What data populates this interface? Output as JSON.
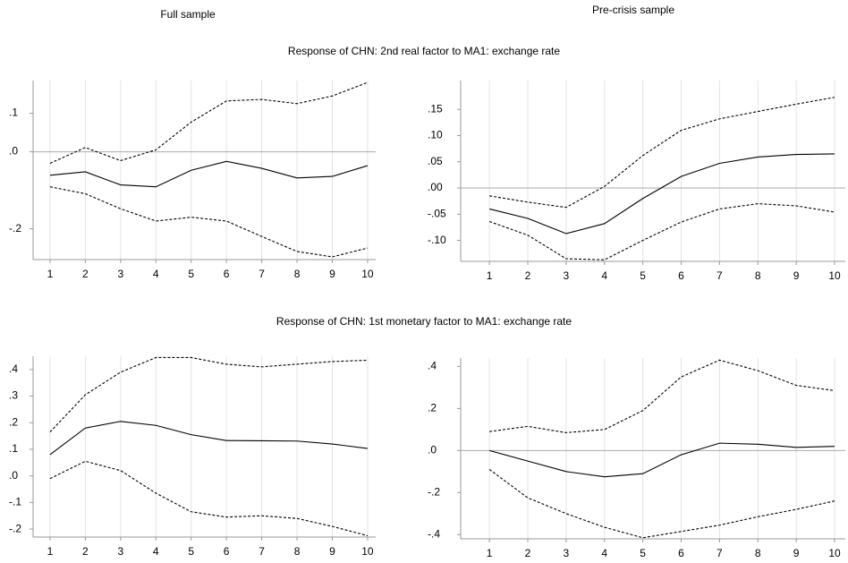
{
  "figure": {
    "columns": [
      "Full sample",
      "Pre-crisis sample"
    ],
    "rows": [
      "Response of CHN: 2nd real factor to MA1: exchange rate",
      "Response of CHN: 1st monetary factor to MA1: exchange rate"
    ]
  },
  "chart_data": [
    {
      "type": "line",
      "x": [
        1,
        2,
        3,
        4,
        5,
        6,
        7,
        8,
        9,
        10
      ],
      "xlim": [
        0.52,
        10.23
      ],
      "xticks": [
        1,
        2,
        3,
        4,
        5,
        6,
        7,
        8,
        9,
        10
      ],
      "ylim": [
        -0.28,
        0.185
      ],
      "yticks": [
        {
          "value": 0.1,
          "label": ".1"
        },
        {
          "value": 0,
          "label": ".0"
        },
        {
          "value": -0.2,
          "label": "-.2"
        }
      ],
      "grid": true,
      "zero_line": true,
      "series": [
        {
          "color": "#000000",
          "line_style": "solid",
          "values": [
            -0.061,
            -0.052,
            -0.086,
            -0.091,
            -0.048,
            -0.025,
            -0.043,
            -0.068,
            -0.064,
            -0.036
          ]
        },
        {
          "color": "#000000",
          "line_style": "dashed",
          "values": [
            -0.03,
            0.011,
            -0.023,
            0.005,
            0.077,
            0.132,
            0.136,
            0.125,
            0.145,
            0.18
          ]
        },
        {
          "color": "#000000",
          "line_style": "dashed",
          "values": [
            -0.091,
            -0.109,
            -0.148,
            -0.18,
            -0.17,
            -0.18,
            -0.22,
            -0.259,
            -0.273,
            -0.25
          ]
        }
      ]
    },
    {
      "type": "line",
      "x": [
        1,
        2,
        3,
        4,
        5,
        6,
        7,
        8,
        9,
        10
      ],
      "xlim": [
        0.25,
        10.28
      ],
      "xticks": [
        1,
        2,
        3,
        4,
        5,
        6,
        7,
        8,
        9,
        10
      ],
      "ylim": [
        -0.14,
        0.205
      ],
      "yticks": [
        {
          "value": 0.15,
          "label": ".15"
        },
        {
          "value": 0.1,
          "label": ".10"
        },
        {
          "value": 0.05,
          "label": ".05"
        },
        {
          "value": 0,
          "label": ".00"
        },
        {
          "value": -0.05,
          "label": "-.05"
        },
        {
          "value": -0.1,
          "label": "-.10"
        }
      ],
      "grid": true,
      "zero_line": true,
      "series": [
        {
          "color": "#000000",
          "line_style": "solid",
          "values": [
            -0.04,
            -0.058,
            -0.087,
            -0.068,
            -0.02,
            0.022,
            0.047,
            0.059,
            0.064,
            0.065
          ]
        },
        {
          "color": "#000000",
          "line_style": "dashed",
          "values": [
            -0.015,
            -0.027,
            -0.037,
            0.003,
            0.062,
            0.11,
            0.132,
            0.146,
            0.16,
            0.173
          ]
        },
        {
          "color": "#000000",
          "line_style": "dashed",
          "values": [
            -0.064,
            -0.09,
            -0.135,
            -0.137,
            -0.1,
            -0.065,
            -0.04,
            -0.03,
            -0.034,
            -0.046
          ]
        }
      ]
    },
    {
      "type": "line",
      "x": [
        1,
        2,
        3,
        4,
        5,
        6,
        7,
        8,
        9,
        10
      ],
      "xlim": [
        0.52,
        10.23
      ],
      "xticks": [
        1,
        2,
        3,
        4,
        5,
        6,
        7,
        8,
        9,
        10
      ],
      "ylim": [
        -0.23,
        0.45
      ],
      "yticks": [
        {
          "value": 0.4,
          "label": ".4"
        },
        {
          "value": 0.3,
          "label": ".3"
        },
        {
          "value": 0.2,
          "label": ".2"
        },
        {
          "value": 0.1,
          "label": ".1"
        },
        {
          "value": 0,
          "label": ".0"
        },
        {
          "value": -0.1,
          "label": "-.1"
        },
        {
          "value": -0.2,
          "label": "-.2"
        }
      ],
      "grid": true,
      "zero_line": false,
      "series": [
        {
          "color": "#000000",
          "line_style": "solid",
          "values": [
            0.08,
            0.18,
            0.205,
            0.19,
            0.155,
            0.133,
            0.132,
            0.131,
            0.12,
            0.103
          ]
        },
        {
          "color": "#000000",
          "line_style": "dashed",
          "values": [
            0.165,
            0.305,
            0.39,
            0.445,
            0.445,
            0.42,
            0.41,
            0.42,
            0.43,
            0.435
          ]
        },
        {
          "color": "#000000",
          "line_style": "dashed",
          "values": [
            -0.01,
            0.055,
            0.02,
            -0.065,
            -0.135,
            -0.155,
            -0.15,
            -0.16,
            -0.19,
            -0.225
          ]
        }
      ]
    },
    {
      "type": "line",
      "x": [
        1,
        2,
        3,
        4,
        5,
        6,
        7,
        8,
        9,
        10
      ],
      "xlim": [
        0.25,
        10.28
      ],
      "xticks": [
        1,
        2,
        3,
        4,
        5,
        6,
        7,
        8,
        9,
        10
      ],
      "ylim": [
        -0.42,
        0.44
      ],
      "yticks": [
        {
          "value": 0.4,
          "label": ".4"
        },
        {
          "value": 0.2,
          "label": ".2"
        },
        {
          "value": 0,
          "label": ".0"
        },
        {
          "value": -0.2,
          "label": "-.2"
        },
        {
          "value": -0.4,
          "label": "-.4"
        }
      ],
      "grid": true,
      "zero_line": true,
      "series": [
        {
          "color": "#000000",
          "line_style": "solid",
          "values": [
            0.0,
            -0.05,
            -0.1,
            -0.125,
            -0.11,
            -0.02,
            0.035,
            0.03,
            0.015,
            0.02
          ]
        },
        {
          "color": "#000000",
          "line_style": "dashed",
          "values": [
            0.09,
            0.115,
            0.085,
            0.1,
            0.19,
            0.35,
            0.43,
            0.38,
            0.31,
            0.285
          ]
        },
        {
          "color": "#000000",
          "line_style": "dashed",
          "values": [
            -0.09,
            -0.225,
            -0.3,
            -0.365,
            -0.415,
            -0.385,
            -0.355,
            -0.315,
            -0.28,
            -0.24
          ]
        }
      ]
    }
  ]
}
